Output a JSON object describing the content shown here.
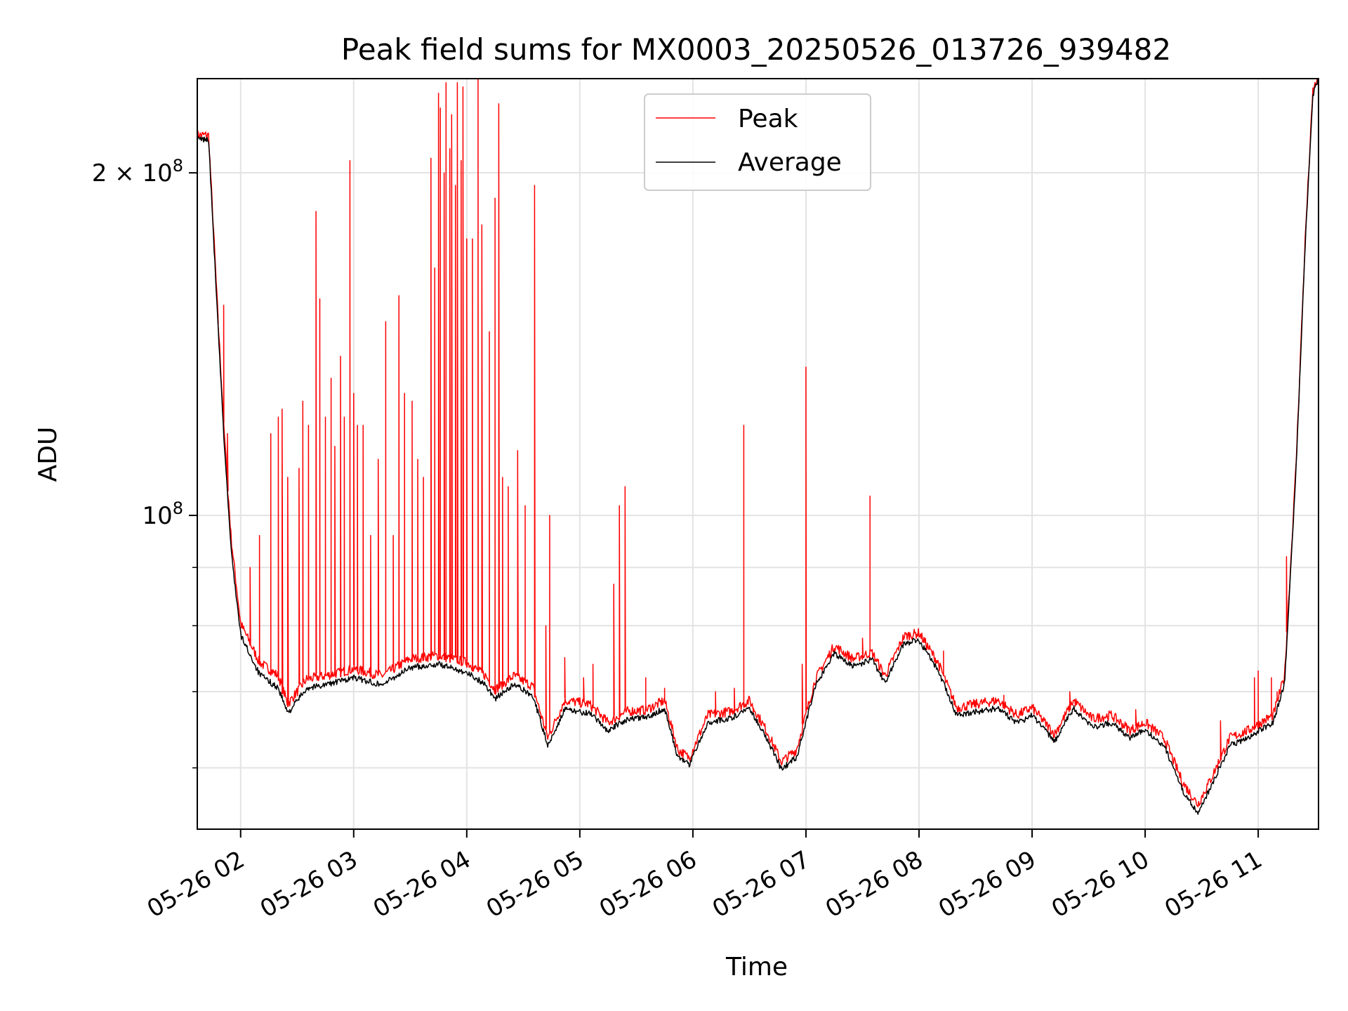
{
  "chart_data": {
    "type": "line",
    "title": "Peak field sums for MX0003_20250526_013726_939482",
    "xlabel": "Time",
    "ylabel": "ADU",
    "x_scale": "time",
    "y_scale": "log",
    "xlim": [
      "2025-05-26 01:37",
      "2025-05-26 11:32"
    ],
    "ylim": [
      53000000,
      242000000
    ],
    "grid": true,
    "legend_position": "top-center",
    "x_ticks": [
      {
        "value": "2025-05-26 02:00",
        "label": "05-26 02"
      },
      {
        "value": "2025-05-26 03:00",
        "label": "05-26 03"
      },
      {
        "value": "2025-05-26 04:00",
        "label": "05-26 04"
      },
      {
        "value": "2025-05-26 05:00",
        "label": "05-26 05"
      },
      {
        "value": "2025-05-26 06:00",
        "label": "05-26 06"
      },
      {
        "value": "2025-05-26 07:00",
        "label": "05-26 07"
      },
      {
        "value": "2025-05-26 08:00",
        "label": "05-26 08"
      },
      {
        "value": "2025-05-26 09:00",
        "label": "05-26 09"
      },
      {
        "value": "2025-05-26 10:00",
        "label": "05-26 10"
      },
      {
        "value": "2025-05-26 11:00",
        "label": "05-26 11"
      }
    ],
    "y_ticks_major": [
      {
        "value": 100000000,
        "base": "10",
        "exp": "8",
        "coef": ""
      },
      {
        "value": 200000000,
        "base": "10",
        "exp": "8",
        "coef": "2 × "
      }
    ],
    "y_ticks_minor": [
      60000000,
      70000000,
      80000000,
      90000000
    ],
    "series": [
      {
        "name": "Peak",
        "color": "#ff0000",
        "baseline": [
          [
            "2025-05-26 01:37",
            215000000
          ],
          [
            "2025-05-26 01:43",
            215000000
          ],
          [
            "2025-05-26 01:47",
            160000000
          ],
          [
            "2025-05-26 01:51",
            120000000
          ],
          [
            "2025-05-26 01:55",
            95000000
          ],
          [
            "2025-05-26 02:00",
            80000000
          ],
          [
            "2025-05-26 02:10",
            74000000
          ],
          [
            "2025-05-26 02:20",
            72000000
          ],
          [
            "2025-05-26 02:25",
            68000000
          ],
          [
            "2025-05-26 02:35",
            71500000
          ],
          [
            "2025-05-26 02:45",
            72000000
          ],
          [
            "2025-05-26 03:00",
            73000000
          ],
          [
            "2025-05-26 03:15",
            72000000
          ],
          [
            "2025-05-26 03:30",
            74500000
          ],
          [
            "2025-05-26 03:45",
            75000000
          ],
          [
            "2025-05-26 04:00",
            74000000
          ],
          [
            "2025-05-26 04:10",
            72000000
          ],
          [
            "2025-05-26 04:15",
            70000000
          ],
          [
            "2025-05-26 04:25",
            72000000
          ],
          [
            "2025-05-26 04:35",
            70500000
          ],
          [
            "2025-05-26 04:43",
            63500000
          ],
          [
            "2025-05-26 04:52",
            68500000
          ],
          [
            "2025-05-26 05:05",
            68000000
          ],
          [
            "2025-05-26 05:15",
            65500000
          ],
          [
            "2025-05-26 05:25",
            67000000
          ],
          [
            "2025-05-26 05:35",
            67200000
          ],
          [
            "2025-05-26 05:45",
            68500000
          ],
          [
            "2025-05-26 05:52",
            62000000
          ],
          [
            "2025-05-26 05:58",
            61000000
          ],
          [
            "2025-05-26 06:08",
            66500000
          ],
          [
            "2025-05-26 06:20",
            67000000
          ],
          [
            "2025-05-26 06:30",
            68500000
          ],
          [
            "2025-05-26 06:40",
            64000000
          ],
          [
            "2025-05-26 06:47",
            60500000
          ],
          [
            "2025-05-26 06:55",
            62000000
          ],
          [
            "2025-05-26 07:05",
            71500000
          ],
          [
            "2025-05-26 07:15",
            76500000
          ],
          [
            "2025-05-26 07:25",
            74500000
          ],
          [
            "2025-05-26 07:35",
            75500000
          ],
          [
            "2025-05-26 07:42",
            72000000
          ],
          [
            "2025-05-26 07:52",
            78000000
          ],
          [
            "2025-05-26 08:00",
            78500000
          ],
          [
            "2025-05-26 08:10",
            74000000
          ],
          [
            "2025-05-26 08:20",
            67500000
          ],
          [
            "2025-05-26 08:30",
            68000000
          ],
          [
            "2025-05-26 08:42",
            68500000
          ],
          [
            "2025-05-26 08:52",
            66500000
          ],
          [
            "2025-05-26 09:00",
            67500000
          ],
          [
            "2025-05-26 09:12",
            64000000
          ],
          [
            "2025-05-26 09:22",
            68500000
          ],
          [
            "2025-05-26 09:32",
            66000000
          ],
          [
            "2025-05-26 09:42",
            66500000
          ],
          [
            "2025-05-26 09:52",
            64500000
          ],
          [
            "2025-05-26 10:00",
            65500000
          ],
          [
            "2025-05-26 10:10",
            63500000
          ],
          [
            "2025-05-26 10:20",
            58000000
          ],
          [
            "2025-05-26 10:28",
            55500000
          ],
          [
            "2025-05-26 10:35",
            58500000
          ],
          [
            "2025-05-26 10:45",
            63500000
          ],
          [
            "2025-05-26 10:55",
            64500000
          ],
          [
            "2025-05-26 11:08",
            66500000
          ],
          [
            "2025-05-26 11:14",
            72000000
          ],
          [
            "2025-05-26 11:20",
            110000000
          ],
          [
            "2025-05-26 11:25",
            175000000
          ],
          [
            "2025-05-26 11:29",
            235000000
          ],
          [
            "2025-05-26 11:32",
            242000000
          ]
        ],
        "spikes": [
          [
            "2025-05-26 01:48",
            150000000
          ],
          [
            "2025-05-26 01:51",
            153000000
          ],
          [
            "2025-05-26 01:53",
            118000000
          ],
          [
            "2025-05-26 02:05",
            90000000
          ],
          [
            "2025-05-26 02:10",
            96000000
          ],
          [
            "2025-05-26 02:16",
            118000000
          ],
          [
            "2025-05-26 02:20",
            122000000
          ],
          [
            "2025-05-26 02:22",
            124000000
          ],
          [
            "2025-05-26 02:25",
            108000000
          ],
          [
            "2025-05-26 02:31",
            110000000
          ],
          [
            "2025-05-26 02:33",
            126000000
          ],
          [
            "2025-05-26 02:36",
            120000000
          ],
          [
            "2025-05-26 02:40",
            185000000
          ],
          [
            "2025-05-26 02:42",
            155000000
          ],
          [
            "2025-05-26 02:45",
            122000000
          ],
          [
            "2025-05-26 02:48",
            132000000
          ],
          [
            "2025-05-26 02:50",
            115000000
          ],
          [
            "2025-05-26 02:53",
            138000000
          ],
          [
            "2025-05-26 02:55",
            122000000
          ],
          [
            "2025-05-26 02:58",
            205000000
          ],
          [
            "2025-05-26 03:00",
            128000000
          ],
          [
            "2025-05-26 03:02",
            120000000
          ],
          [
            "2025-05-26 03:05",
            120000000
          ],
          [
            "2025-05-26 03:09",
            96000000
          ],
          [
            "2025-05-26 03:13",
            112000000
          ],
          [
            "2025-05-26 03:17",
            148000000
          ],
          [
            "2025-05-26 03:21",
            96000000
          ],
          [
            "2025-05-26 03:24",
            156000000
          ],
          [
            "2025-05-26 03:27",
            128000000
          ],
          [
            "2025-05-26 03:31",
            126000000
          ],
          [
            "2025-05-26 03:34",
            112000000
          ],
          [
            "2025-05-26 03:37",
            108000000
          ],
          [
            "2025-05-26 03:41",
            206000000
          ],
          [
            "2025-05-26 03:43",
            165000000
          ],
          [
            "2025-05-26 03:45",
            235000000
          ],
          [
            "2025-05-26 03:46",
            228000000
          ],
          [
            "2025-05-26 03:48",
            200000000
          ],
          [
            "2025-05-26 03:49",
            240000000
          ],
          [
            "2025-05-26 03:51",
            210000000
          ],
          [
            "2025-05-26 03:52",
            225000000
          ],
          [
            "2025-05-26 03:54",
            195000000
          ],
          [
            "2025-05-26 03:55",
            240000000
          ],
          [
            "2025-05-26 03:57",
            205000000
          ],
          [
            "2025-05-26 03:58",
            238000000
          ],
          [
            "2025-05-26 04:00",
            175000000
          ],
          [
            "2025-05-26 04:03",
            175000000
          ],
          [
            "2025-05-26 04:06",
            242000000
          ],
          [
            "2025-05-26 04:08",
            180000000
          ],
          [
            "2025-05-26 04:12",
            145000000
          ],
          [
            "2025-05-26 04:15",
            190000000
          ],
          [
            "2025-05-26 04:17",
            230000000
          ],
          [
            "2025-05-26 04:19",
            108000000
          ],
          [
            "2025-05-26 04:22",
            106000000
          ],
          [
            "2025-05-26 04:27",
            114000000
          ],
          [
            "2025-05-26 04:31",
            102000000
          ],
          [
            "2025-05-26 04:36",
            195000000
          ],
          [
            "2025-05-26 04:42",
            80000000
          ],
          [
            "2025-05-26 04:44",
            100000000
          ],
          [
            "2025-05-26 04:52",
            75000000
          ],
          [
            "2025-05-26 05:02",
            72000000
          ],
          [
            "2025-05-26 05:07",
            74000000
          ],
          [
            "2025-05-26 05:18",
            87000000
          ],
          [
            "2025-05-26 05:21",
            102000000
          ],
          [
            "2025-05-26 05:24",
            106000000
          ],
          [
            "2025-05-26 05:35",
            72000000
          ],
          [
            "2025-05-26 05:45",
            70500000
          ],
          [
            "2025-05-26 06:12",
            70000000
          ],
          [
            "2025-05-26 06:22",
            70500000
          ],
          [
            "2025-05-26 06:27",
            120000000
          ],
          [
            "2025-05-26 06:32",
            67000000
          ],
          [
            "2025-05-26 06:58",
            74000000
          ],
          [
            "2025-05-26 07:00",
            135000000
          ],
          [
            "2025-05-26 07:30",
            78000000
          ],
          [
            "2025-05-26 07:34",
            104000000
          ],
          [
            "2025-05-26 08:13",
            76000000
          ],
          [
            "2025-05-26 08:45",
            69500000
          ],
          [
            "2025-05-26 09:20",
            70000000
          ],
          [
            "2025-05-26 09:55",
            67500000
          ],
          [
            "2025-05-26 10:40",
            66000000
          ],
          [
            "2025-05-26 10:58",
            72000000
          ],
          [
            "2025-05-26 11:00",
            73000000
          ],
          [
            "2025-05-26 11:07",
            72000000
          ],
          [
            "2025-05-26 11:10",
            70000000
          ],
          [
            "2025-05-26 11:15",
            92000000
          ]
        ]
      },
      {
        "name": "Average",
        "color": "#000000",
        "values": [
          [
            "2025-05-26 01:37",
            214000000
          ],
          [
            "2025-05-26 01:43",
            214000000
          ],
          [
            "2025-05-26 01:47",
            158000000
          ],
          [
            "2025-05-26 01:51",
            118000000
          ],
          [
            "2025-05-26 01:55",
            93000000
          ],
          [
            "2025-05-26 02:00",
            78500000
          ],
          [
            "2025-05-26 02:10",
            72500000
          ],
          [
            "2025-05-26 02:20",
            70500000
          ],
          [
            "2025-05-26 02:25",
            67000000
          ],
          [
            "2025-05-26 02:35",
            70500000
          ],
          [
            "2025-05-26 02:45",
            71000000
          ],
          [
            "2025-05-26 03:00",
            72000000
          ],
          [
            "2025-05-26 03:15",
            71000000
          ],
          [
            "2025-05-26 03:30",
            73500000
          ],
          [
            "2025-05-26 03:45",
            74000000
          ],
          [
            "2025-05-26 04:00",
            72800000
          ],
          [
            "2025-05-26 04:10",
            71000000
          ],
          [
            "2025-05-26 04:15",
            69000000
          ],
          [
            "2025-05-26 04:25",
            71000000
          ],
          [
            "2025-05-26 04:35",
            69500000
          ],
          [
            "2025-05-26 04:43",
            62800000
          ],
          [
            "2025-05-26 04:52",
            67500000
          ],
          [
            "2025-05-26 05:05",
            67000000
          ],
          [
            "2025-05-26 05:15",
            64700000
          ],
          [
            "2025-05-26 05:25",
            66200000
          ],
          [
            "2025-05-26 05:35",
            66400000
          ],
          [
            "2025-05-26 05:45",
            67700000
          ],
          [
            "2025-05-26 05:52",
            61300000
          ],
          [
            "2025-05-26 05:58",
            60400000
          ],
          [
            "2025-05-26 06:08",
            65800000
          ],
          [
            "2025-05-26 06:20",
            66300000
          ],
          [
            "2025-05-26 06:30",
            67800000
          ],
          [
            "2025-05-26 06:40",
            63300000
          ],
          [
            "2025-05-26 06:47",
            59800000
          ],
          [
            "2025-05-26 06:55",
            61300000
          ],
          [
            "2025-05-26 07:05",
            70800000
          ],
          [
            "2025-05-26 07:15",
            75700000
          ],
          [
            "2025-05-26 07:25",
            73700000
          ],
          [
            "2025-05-26 07:35",
            74700000
          ],
          [
            "2025-05-26 07:42",
            71300000
          ],
          [
            "2025-05-26 07:52",
            77200000
          ],
          [
            "2025-05-26 08:00",
            77700000
          ],
          [
            "2025-05-26 08:10",
            73200000
          ],
          [
            "2025-05-26 08:20",
            66700000
          ],
          [
            "2025-05-26 08:30",
            67200000
          ],
          [
            "2025-05-26 08:42",
            67700000
          ],
          [
            "2025-05-26 08:52",
            65700000
          ],
          [
            "2025-05-26 09:00",
            66700000
          ],
          [
            "2025-05-26 09:12",
            63300000
          ],
          [
            "2025-05-26 09:22",
            67700000
          ],
          [
            "2025-05-26 09:32",
            65200000
          ],
          [
            "2025-05-26 09:42",
            65700000
          ],
          [
            "2025-05-26 09:52",
            63800000
          ],
          [
            "2025-05-26 10:00",
            64800000
          ],
          [
            "2025-05-26 10:10",
            62800000
          ],
          [
            "2025-05-26 10:20",
            57300000
          ],
          [
            "2025-05-26 10:28",
            54800000
          ],
          [
            "2025-05-26 10:35",
            57800000
          ],
          [
            "2025-05-26 10:45",
            62800000
          ],
          [
            "2025-05-26 10:55",
            63800000
          ],
          [
            "2025-05-26 11:08",
            65800000
          ],
          [
            "2025-05-26 11:14",
            71200000
          ],
          [
            "2025-05-26 11:20",
            109000000
          ],
          [
            "2025-05-26 11:25",
            174000000
          ],
          [
            "2025-05-26 11:29",
            234000000
          ],
          [
            "2025-05-26 11:32",
            242000000
          ]
        ]
      }
    ]
  }
}
